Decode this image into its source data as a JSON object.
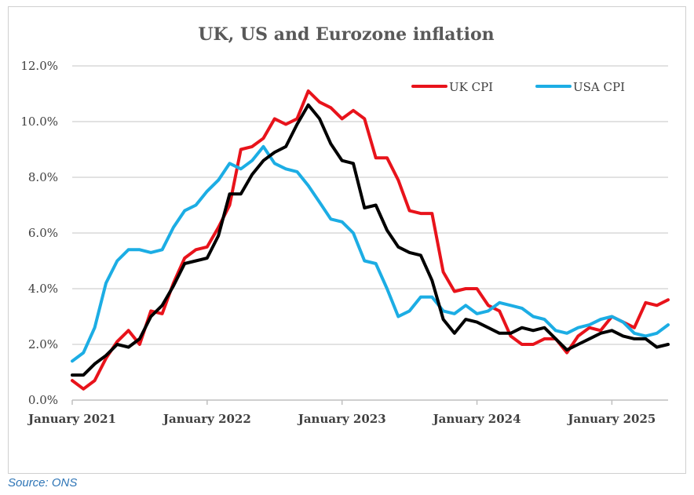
{
  "source": "Source: ONS",
  "chart_data": {
    "type": "line",
    "title": "UK, US and Eurozone inflation",
    "xlabel": "",
    "ylabel": "",
    "ylim": [
      0,
      12
    ],
    "y_ticks": [
      "0.0%",
      "2.0%",
      "4.0%",
      "6.0%",
      "8.0%",
      "10.0%",
      "12.0%"
    ],
    "x_ticks": [
      "January 2021",
      "January 2022",
      "January 2023",
      "January 2024",
      "January 2025"
    ],
    "grid": true,
    "legend_position": "top-right",
    "x": [
      "2021-01",
      "2021-02",
      "2021-03",
      "2021-04",
      "2021-05",
      "2021-06",
      "2021-07",
      "2021-08",
      "2021-09",
      "2021-10",
      "2021-11",
      "2021-12",
      "2022-01",
      "2022-02",
      "2022-03",
      "2022-04",
      "2022-05",
      "2022-06",
      "2022-07",
      "2022-08",
      "2022-09",
      "2022-10",
      "2022-11",
      "2022-12",
      "2023-01",
      "2023-02",
      "2023-03",
      "2023-04",
      "2023-05",
      "2023-06",
      "2023-07",
      "2023-08",
      "2023-09",
      "2023-10",
      "2023-11",
      "2023-12",
      "2024-01",
      "2024-02",
      "2024-03",
      "2024-04",
      "2024-05",
      "2024-06",
      "2024-07",
      "2024-08",
      "2024-09",
      "2024-10",
      "2024-11",
      "2024-12",
      "2025-01",
      "2025-02",
      "2025-03",
      "2025-04",
      "2025-05",
      "2025-06"
    ],
    "series": [
      {
        "name": "UK CPI",
        "color": "#e8131b",
        "in_legend": true,
        "values": [
          0.7,
          0.4,
          0.7,
          1.5,
          2.1,
          2.5,
          2.0,
          3.2,
          3.1,
          4.2,
          5.1,
          5.4,
          5.5,
          6.2,
          7.0,
          9.0,
          9.1,
          9.4,
          10.1,
          9.9,
          10.1,
          11.1,
          10.7,
          10.5,
          10.1,
          10.4,
          10.1,
          8.7,
          8.7,
          7.9,
          6.8,
          6.7,
          6.7,
          4.6,
          3.9,
          4.0,
          4.0,
          3.4,
          3.2,
          2.3,
          2.0,
          2.0,
          2.2,
          2.2,
          1.7,
          2.3,
          2.6,
          2.5,
          3.0,
          2.8,
          2.6,
          3.5,
          3.4,
          3.6
        ]
      },
      {
        "name": "USA CPI",
        "color": "#1cade4",
        "in_legend": true,
        "values": [
          1.4,
          1.7,
          2.6,
          4.2,
          5.0,
          5.4,
          5.4,
          5.3,
          5.4,
          6.2,
          6.8,
          7.0,
          7.5,
          7.9,
          8.5,
          8.3,
          8.6,
          9.1,
          8.5,
          8.3,
          8.2,
          7.7,
          7.1,
          6.5,
          6.4,
          6.0,
          5.0,
          4.9,
          4.0,
          3.0,
          3.2,
          3.7,
          3.7,
          3.2,
          3.1,
          3.4,
          3.1,
          3.2,
          3.5,
          3.4,
          3.3,
          3.0,
          2.9,
          2.5,
          2.4,
          2.6,
          2.7,
          2.9,
          3.0,
          2.8,
          2.4,
          2.3,
          2.4,
          2.7
        ]
      },
      {
        "color": "#000000",
        "in_legend": false,
        "values": [
          0.9,
          0.9,
          1.3,
          1.6,
          2.0,
          1.9,
          2.2,
          3.0,
          3.4,
          4.1,
          4.9,
          5.0,
          5.1,
          5.9,
          7.4,
          7.4,
          8.1,
          8.6,
          8.9,
          9.1,
          9.9,
          10.6,
          10.1,
          9.2,
          8.6,
          8.5,
          6.9,
          7.0,
          6.1,
          5.5,
          5.3,
          5.2,
          4.3,
          2.9,
          2.4,
          2.9,
          2.8,
          2.6,
          2.4,
          2.4,
          2.6,
          2.5,
          2.6,
          2.2,
          1.8,
          2.0,
          2.2,
          2.4,
          2.5,
          2.3,
          2.2,
          2.2,
          1.9,
          2.0
        ]
      }
    ]
  }
}
